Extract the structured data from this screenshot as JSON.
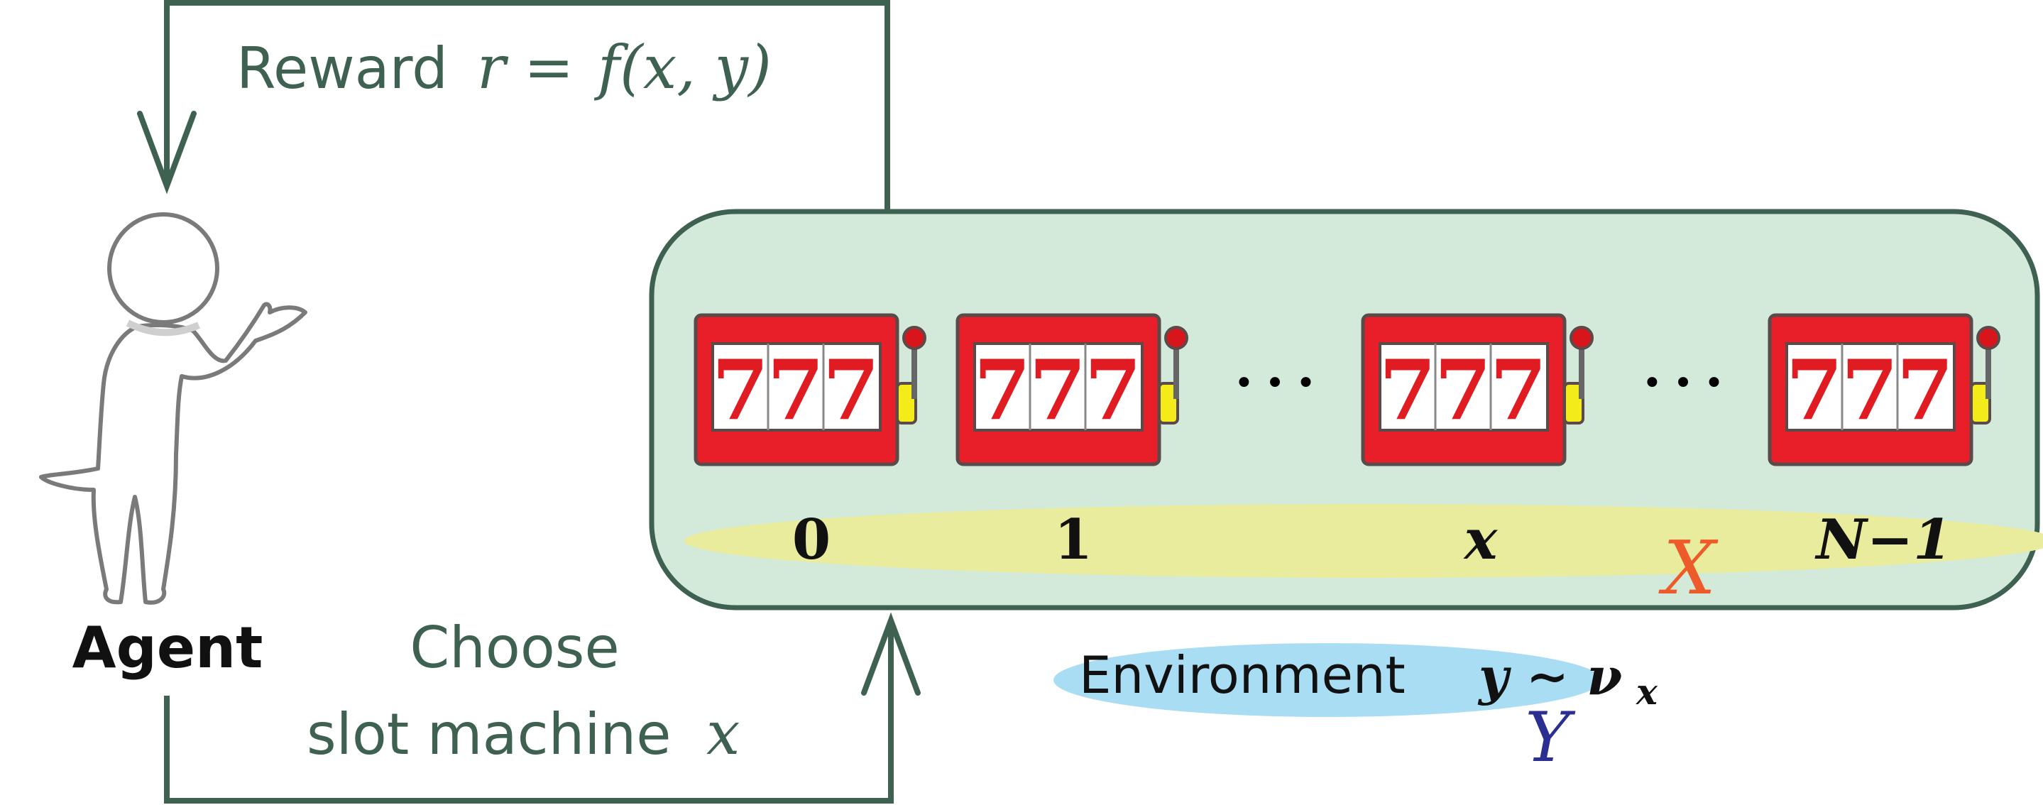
{
  "reward": {
    "word": "Reward",
    "formula_var": "r",
    "formula_eq": "=",
    "formula_func": "f(x, y)"
  },
  "agent": {
    "label": "Agent"
  },
  "choose": {
    "line1": "Choose",
    "line2_text": "slot machine",
    "line2_var": "x"
  },
  "slot_reel_symbol": "7",
  "ellipsis": "• • •",
  "machines": [
    {
      "label": "0",
      "label_italic": false
    },
    {
      "label": "1",
      "label_italic": false
    },
    {
      "label": "x",
      "label_italic": true
    },
    {
      "label": "N−1",
      "label_italic": true
    }
  ],
  "space_label": "X",
  "environment": {
    "word": "Environment",
    "formula": "y ∼ ν",
    "subscript": "x",
    "outcome_label": "Y"
  },
  "colors": {
    "arrow": "#3e6152",
    "box_fill": "#d3eadb",
    "box_stroke": "#3e6152",
    "ellipse_fill": "#e8ec9c",
    "env_ellipse": "#a9ddf3",
    "machine_red": "#e81f28",
    "machine_border": "#5a4a4a",
    "reel_digit": "#e01b22",
    "knob": "#d9151c",
    "coin_slot": "#f4ec1a",
    "space_label": "#ee5b2a",
    "outcome_label": "#2b2f92",
    "text_dark": "#111111"
  }
}
